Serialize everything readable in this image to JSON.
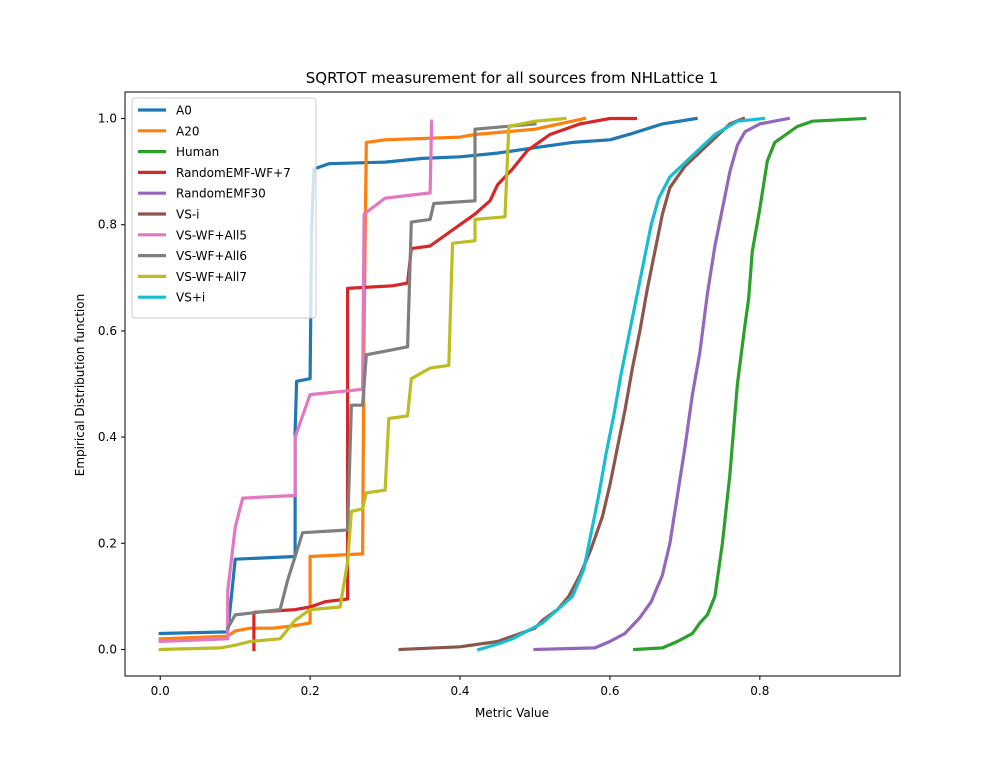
{
  "chart_data": {
    "type": "line",
    "title": "SQRTOT measurement for all sources from NHLattice 1",
    "xlabel": "Metric Value",
    "ylabel": "Empirical Distribution function",
    "xlim": [
      -0.047,
      0.987
    ],
    "ylim": [
      -0.05,
      1.05
    ],
    "xticks": [
      0.0,
      0.2,
      0.4,
      0.6,
      0.8
    ],
    "xtick_labels": [
      "0.0",
      "0.2",
      "0.4",
      "0.6",
      "0.8"
    ],
    "yticks": [
      0.0,
      0.2,
      0.4,
      0.6,
      0.8,
      1.0
    ],
    "ytick_labels": [
      "0.0",
      "0.2",
      "0.4",
      "0.6",
      "0.8",
      "1.0"
    ],
    "grid": false,
    "legend_position": "upper-left",
    "series": [
      {
        "name": "A0",
        "color": "#1f77b4",
        "points": [
          [
            0.0,
            0.03
          ],
          [
            0.09,
            0.033
          ],
          [
            0.095,
            0.1
          ],
          [
            0.1,
            0.17
          ],
          [
            0.18,
            0.175
          ],
          [
            0.18,
            0.41
          ],
          [
            0.182,
            0.505
          ],
          [
            0.2,
            0.51
          ],
          [
            0.202,
            0.79
          ],
          [
            0.205,
            0.905
          ],
          [
            0.225,
            0.915
          ],
          [
            0.3,
            0.918
          ],
          [
            0.35,
            0.925
          ],
          [
            0.4,
            0.928
          ],
          [
            0.45,
            0.935
          ],
          [
            0.5,
            0.945
          ],
          [
            0.55,
            0.955
          ],
          [
            0.6,
            0.96
          ],
          [
            0.63,
            0.972
          ],
          [
            0.67,
            0.99
          ],
          [
            0.715,
            1.0
          ]
        ]
      },
      {
        "name": "A20",
        "color": "#ff7f0e",
        "points": [
          [
            0.0,
            0.02
          ],
          [
            0.09,
            0.025
          ],
          [
            0.1,
            0.035
          ],
          [
            0.12,
            0.04
          ],
          [
            0.15,
            0.04
          ],
          [
            0.18,
            0.045
          ],
          [
            0.2,
            0.05
          ],
          [
            0.2,
            0.175
          ],
          [
            0.27,
            0.18
          ],
          [
            0.272,
            0.6
          ],
          [
            0.275,
            0.955
          ],
          [
            0.3,
            0.96
          ],
          [
            0.4,
            0.965
          ],
          [
            0.42,
            0.97
          ],
          [
            0.5,
            0.98
          ],
          [
            0.566,
            1.0
          ]
        ]
      },
      {
        "name": "Human",
        "color": "#2ca02c",
        "points": [
          [
            0.633,
            0.0
          ],
          [
            0.67,
            0.003
          ],
          [
            0.69,
            0.015
          ],
          [
            0.71,
            0.03
          ],
          [
            0.72,
            0.05
          ],
          [
            0.73,
            0.065
          ],
          [
            0.74,
            0.1
          ],
          [
            0.75,
            0.2
          ],
          [
            0.76,
            0.33
          ],
          [
            0.77,
            0.5
          ],
          [
            0.78,
            0.61
          ],
          [
            0.785,
            0.66
          ],
          [
            0.79,
            0.75
          ],
          [
            0.8,
            0.83
          ],
          [
            0.81,
            0.92
          ],
          [
            0.82,
            0.955
          ],
          [
            0.85,
            0.985
          ],
          [
            0.87,
            0.995
          ],
          [
            0.94,
            1.0
          ]
        ]
      },
      {
        "name": "RandomEMF-WF+7",
        "color": "#d62728",
        "points": [
          [
            0.125,
            0.0
          ],
          [
            0.125,
            0.07
          ],
          [
            0.18,
            0.075
          ],
          [
            0.2,
            0.08
          ],
          [
            0.22,
            0.09
          ],
          [
            0.25,
            0.095
          ],
          [
            0.25,
            0.68
          ],
          [
            0.31,
            0.685
          ],
          [
            0.33,
            0.69
          ],
          [
            0.335,
            0.755
          ],
          [
            0.36,
            0.76
          ],
          [
            0.375,
            0.775
          ],
          [
            0.4,
            0.8
          ],
          [
            0.42,
            0.82
          ],
          [
            0.44,
            0.845
          ],
          [
            0.45,
            0.875
          ],
          [
            0.47,
            0.905
          ],
          [
            0.49,
            0.94
          ],
          [
            0.52,
            0.97
          ],
          [
            0.56,
            0.99
          ],
          [
            0.6,
            1.0
          ],
          [
            0.634,
            1.0
          ]
        ]
      },
      {
        "name": "RandomEMF30",
        "color": "#9467bd",
        "points": [
          [
            0.5,
            0.0
          ],
          [
            0.58,
            0.003
          ],
          [
            0.6,
            0.015
          ],
          [
            0.62,
            0.03
          ],
          [
            0.64,
            0.06
          ],
          [
            0.655,
            0.09
          ],
          [
            0.67,
            0.14
          ],
          [
            0.68,
            0.2
          ],
          [
            0.69,
            0.29
          ],
          [
            0.7,
            0.38
          ],
          [
            0.71,
            0.48
          ],
          [
            0.72,
            0.56
          ],
          [
            0.73,
            0.67
          ],
          [
            0.74,
            0.76
          ],
          [
            0.75,
            0.83
          ],
          [
            0.76,
            0.9
          ],
          [
            0.77,
            0.95
          ],
          [
            0.78,
            0.975
          ],
          [
            0.8,
            0.99
          ],
          [
            0.838,
            1.0
          ]
        ]
      },
      {
        "name": "VS-i",
        "color": "#8c564b",
        "points": [
          [
            0.32,
            0.0
          ],
          [
            0.4,
            0.005
          ],
          [
            0.45,
            0.015
          ],
          [
            0.47,
            0.025
          ],
          [
            0.5,
            0.04
          ],
          [
            0.51,
            0.055
          ],
          [
            0.53,
            0.075
          ],
          [
            0.545,
            0.1
          ],
          [
            0.56,
            0.14
          ],
          [
            0.575,
            0.19
          ],
          [
            0.59,
            0.25
          ],
          [
            0.6,
            0.31
          ],
          [
            0.61,
            0.38
          ],
          [
            0.62,
            0.45
          ],
          [
            0.63,
            0.53
          ],
          [
            0.64,
            0.6
          ],
          [
            0.65,
            0.68
          ],
          [
            0.66,
            0.75
          ],
          [
            0.67,
            0.82
          ],
          [
            0.68,
            0.87
          ],
          [
            0.7,
            0.91
          ],
          [
            0.73,
            0.95
          ],
          [
            0.76,
            0.99
          ],
          [
            0.778,
            1.0
          ]
        ]
      },
      {
        "name": "VS-WF+All5",
        "color": "#e377c2",
        "points": [
          [
            0.0,
            0.015
          ],
          [
            0.09,
            0.02
          ],
          [
            0.09,
            0.11
          ],
          [
            0.1,
            0.23
          ],
          [
            0.11,
            0.285
          ],
          [
            0.18,
            0.29
          ],
          [
            0.18,
            0.4
          ],
          [
            0.2,
            0.48
          ],
          [
            0.27,
            0.49
          ],
          [
            0.272,
            0.82
          ],
          [
            0.3,
            0.85
          ],
          [
            0.36,
            0.86
          ],
          [
            0.362,
            0.995
          ]
        ]
      },
      {
        "name": "VS-WF+All6",
        "color": "#7f7f7f",
        "points": [
          [
            0.09,
            0.04
          ],
          [
            0.1,
            0.065
          ],
          [
            0.16,
            0.075
          ],
          [
            0.17,
            0.13
          ],
          [
            0.19,
            0.22
          ],
          [
            0.25,
            0.225
          ],
          [
            0.255,
            0.46
          ],
          [
            0.27,
            0.46
          ],
          [
            0.275,
            0.555
          ],
          [
            0.33,
            0.57
          ],
          [
            0.335,
            0.805
          ],
          [
            0.36,
            0.81
          ],
          [
            0.365,
            0.84
          ],
          [
            0.42,
            0.845
          ],
          [
            0.42,
            0.98
          ],
          [
            0.5,
            0.99
          ]
        ]
      },
      {
        "name": "VS-WF+All7",
        "color": "#bcbd22",
        "points": [
          [
            0.0,
            0.0
          ],
          [
            0.08,
            0.003
          ],
          [
            0.1,
            0.008
          ],
          [
            0.12,
            0.015
          ],
          [
            0.16,
            0.02
          ],
          [
            0.18,
            0.055
          ],
          [
            0.2,
            0.075
          ],
          [
            0.24,
            0.08
          ],
          [
            0.25,
            0.165
          ],
          [
            0.255,
            0.26
          ],
          [
            0.27,
            0.265
          ],
          [
            0.275,
            0.295
          ],
          [
            0.3,
            0.3
          ],
          [
            0.305,
            0.435
          ],
          [
            0.33,
            0.44
          ],
          [
            0.335,
            0.51
          ],
          [
            0.36,
            0.53
          ],
          [
            0.385,
            0.535
          ],
          [
            0.39,
            0.765
          ],
          [
            0.42,
            0.77
          ],
          [
            0.42,
            0.81
          ],
          [
            0.46,
            0.815
          ],
          [
            0.465,
            0.985
          ],
          [
            0.5,
            0.995
          ],
          [
            0.54,
            1.0
          ]
        ]
      },
      {
        "name": "VS+i",
        "color": "#17becf",
        "points": [
          [
            0.425,
            0.0
          ],
          [
            0.45,
            0.01
          ],
          [
            0.47,
            0.02
          ],
          [
            0.49,
            0.035
          ],
          [
            0.51,
            0.05
          ],
          [
            0.53,
            0.075
          ],
          [
            0.55,
            0.1
          ],
          [
            0.565,
            0.15
          ],
          [
            0.575,
            0.22
          ],
          [
            0.585,
            0.29
          ],
          [
            0.595,
            0.37
          ],
          [
            0.605,
            0.44
          ],
          [
            0.615,
            0.52
          ],
          [
            0.625,
            0.59
          ],
          [
            0.635,
            0.66
          ],
          [
            0.645,
            0.73
          ],
          [
            0.655,
            0.8
          ],
          [
            0.665,
            0.85
          ],
          [
            0.68,
            0.89
          ],
          [
            0.71,
            0.93
          ],
          [
            0.74,
            0.97
          ],
          [
            0.77,
            0.995
          ],
          [
            0.805,
            1.0
          ]
        ]
      }
    ]
  }
}
